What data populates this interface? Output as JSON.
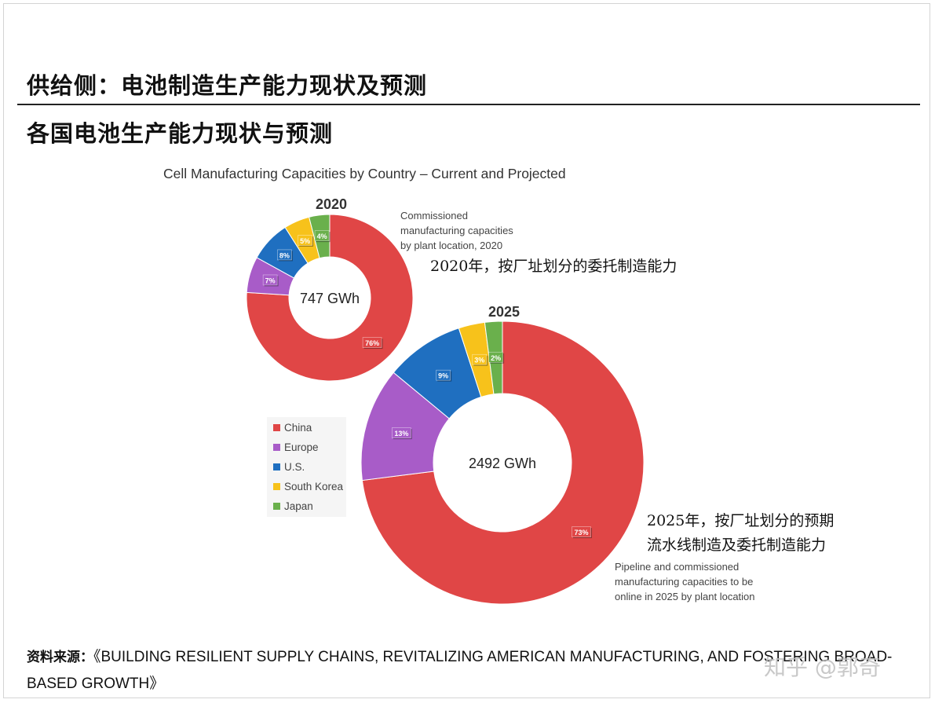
{
  "header": {
    "title": "供给侧：电池制造生产能力现状及预测"
  },
  "section_title": "各国电池生产能力现状与预测",
  "notes": {
    "note_2020_en": "Commissioned\nmanufacturing capacities\nby plant location, 2020",
    "note_2020_cn": "2020年，按厂址划分的委托制造能力",
    "note_2025_cn": "2025年，按厂址划分的预期\n流水线制造及委托制造能力",
    "note_2025_en": "Pipeline and commissioned\nmanufacturing capacities to be\nonline in 2025 by plant location"
  },
  "source": {
    "label": "资料来源：",
    "text": "《BUILDING RESILIENT SUPPLY CHAINS, REVITALIZING AMERICAN MANUFACTURING, AND FOSTERING BROAD-BASED GROWTH》"
  },
  "watermark": "知乎 @郭奇",
  "colors": {
    "China": "#e04646",
    "Europe": "#a85cc8",
    "U.S.": "#1f6fc0",
    "South Korea": "#f7c21b",
    "Japan": "#6ab04c"
  },
  "chart_data": {
    "type": "pie",
    "title": "Cell Manufacturing Capacities by Country – Current and Projected",
    "legend": [
      "China",
      "Europe",
      "U.S.",
      "South Korea",
      "Japan"
    ],
    "legend_position": "left",
    "charts": [
      {
        "year": "2020",
        "center_label": "747 GWh",
        "slices": [
          {
            "name": "China",
            "value": 76,
            "label": "76%"
          },
          {
            "name": "Europe",
            "value": 7,
            "label": "7%"
          },
          {
            "name": "U.S.",
            "value": 8,
            "label": "8%"
          },
          {
            "name": "South Korea",
            "value": 5,
            "label": "5%"
          },
          {
            "name": "Japan",
            "value": 4,
            "label": "4%"
          }
        ]
      },
      {
        "year": "2025",
        "center_label": "2492 GWh",
        "slices": [
          {
            "name": "China",
            "value": 73,
            "label": "73%"
          },
          {
            "name": "Europe",
            "value": 13,
            "label": "13%"
          },
          {
            "name": "U.S.",
            "value": 9,
            "label": "9%"
          },
          {
            "name": "South Korea",
            "value": 3,
            "label": "3%"
          },
          {
            "name": "Japan",
            "value": 2,
            "label": "2%"
          }
        ]
      }
    ]
  }
}
